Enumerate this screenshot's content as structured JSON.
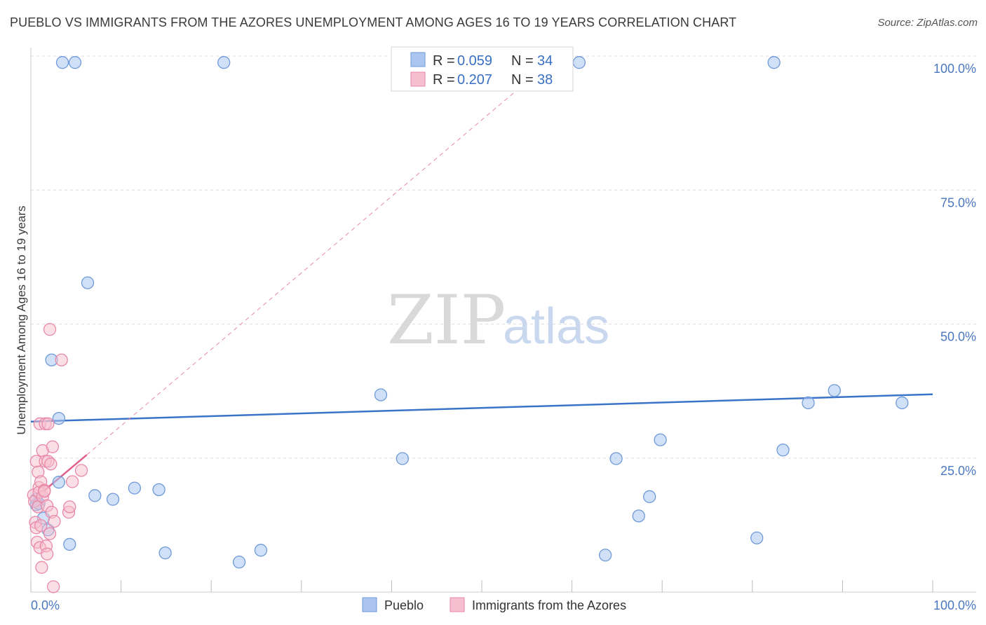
{
  "title": "PUEBLO VS IMMIGRANTS FROM THE AZORES UNEMPLOYMENT AMONG AGES 16 TO 19 YEARS CORRELATION CHART",
  "source": "Source: ZipAtlas.com",
  "watermark": {
    "zip": "ZIP",
    "atlas": "atlas"
  },
  "colors": {
    "pueblo_fill": "#aac6f0",
    "pueblo_stroke": "#6f9ad8",
    "pueblo_line": "#3a74c8",
    "azores_fill": "#f6bfd0",
    "azores_stroke": "#e889a8",
    "azores_line": "#e0618b",
    "axis_text": "#4a78c0",
    "grid": "#dddddd"
  },
  "legend": {
    "rows": [
      {
        "r_label": "R = ",
        "r_value": "0.059",
        "n_label": "N = ",
        "n_value": "34"
      },
      {
        "r_label": "R = ",
        "r_value": "0.207",
        "n_label": "N = ",
        "n_value": "38"
      }
    ]
  },
  "chart_data": {
    "type": "scatter",
    "title": "PUEBLO VS IMMIGRANTS FROM THE AZORES UNEMPLOYMENT AMONG AGES 16 TO 19 YEARS CORRELATION CHART",
    "xlabel": "",
    "ylabel": "Unemployment Among Ages 16 to 19 years",
    "xlim": [
      0,
      100
    ],
    "ylim": [
      0,
      100
    ],
    "x_tick_labels": [
      "0.0%",
      "100.0%"
    ],
    "y_ticks": [
      {
        "value": 25,
        "label": "25.0%"
      },
      {
        "value": 50,
        "label": "50.0%"
      },
      {
        "value": 75,
        "label": "75.0%"
      },
      {
        "value": 100,
        "label": "100.0%"
      }
    ],
    "legend_position": "bottom",
    "series": [
      {
        "name": "Pueblo",
        "R": 0.059,
        "N": 34,
        "trend": {
          "x0": 0,
          "y0": 31.8,
          "x1": 100,
          "y1": 36.9,
          "style": "solid"
        },
        "points": [
          [
            3.5,
            98.8
          ],
          [
            4.9,
            98.8
          ],
          [
            21.4,
            98.8
          ],
          [
            60.8,
            98.8
          ],
          [
            82.4,
            98.8
          ],
          [
            0.6,
            17.3
          ],
          [
            0.6,
            16.3
          ],
          [
            0.9,
            16.5
          ],
          [
            1.4,
            13.8
          ],
          [
            1.9,
            11.6
          ],
          [
            2.3,
            43.3
          ],
          [
            3.1,
            32.4
          ],
          [
            3.1,
            20.5
          ],
          [
            4.3,
            8.9
          ],
          [
            6.3,
            57.7
          ],
          [
            7.1,
            18.0
          ],
          [
            9.1,
            17.3
          ],
          [
            11.5,
            19.4
          ],
          [
            14.2,
            19.1
          ],
          [
            14.9,
            7.3
          ],
          [
            23.1,
            5.6
          ],
          [
            25.5,
            7.8
          ],
          [
            38.8,
            36.8
          ],
          [
            41.2,
            24.9
          ],
          [
            63.7,
            6.9
          ],
          [
            64.9,
            24.9
          ],
          [
            67.4,
            14.2
          ],
          [
            68.6,
            17.8
          ],
          [
            69.8,
            28.4
          ],
          [
            80.5,
            10.1
          ],
          [
            83.4,
            26.5
          ],
          [
            86.2,
            35.3
          ],
          [
            89.1,
            37.6
          ],
          [
            96.6,
            35.3
          ]
        ]
      },
      {
        "name": "Immigrants from the Azores",
        "R": 0.207,
        "N": 38,
        "trend": {
          "x0": 0.4,
          "y0": 17.4,
          "x1": 6.2,
          "y1": 25.6,
          "style": "solid",
          "extended": {
            "x0": 6.2,
            "y0": 25.6,
            "x1": 54.5,
            "y1": 94.5,
            "style": "dashed"
          }
        },
        "points": [
          [
            0.3,
            18.1
          ],
          [
            0.4,
            16.9
          ],
          [
            0.5,
            13.0
          ],
          [
            0.6,
            12.0
          ],
          [
            0.6,
            24.4
          ],
          [
            0.7,
            9.3
          ],
          [
            0.8,
            22.4
          ],
          [
            0.8,
            15.9
          ],
          [
            0.9,
            19.5
          ],
          [
            0.9,
            18.6
          ],
          [
            1.0,
            8.3
          ],
          [
            1.0,
            31.4
          ],
          [
            1.1,
            20.6
          ],
          [
            1.1,
            12.4
          ],
          [
            1.2,
            4.6
          ],
          [
            1.3,
            17.8
          ],
          [
            1.3,
            26.4
          ],
          [
            1.5,
            19.0
          ],
          [
            1.5,
            18.8
          ],
          [
            1.6,
            31.4
          ],
          [
            1.6,
            24.4
          ],
          [
            1.7,
            8.6
          ],
          [
            1.8,
            7.1
          ],
          [
            1.8,
            16.1
          ],
          [
            1.9,
            24.4
          ],
          [
            1.9,
            31.4
          ],
          [
            2.1,
            10.9
          ],
          [
            2.1,
            49.0
          ],
          [
            2.2,
            23.9
          ],
          [
            2.3,
            14.9
          ],
          [
            2.4,
            27.1
          ],
          [
            2.5,
            1.0
          ],
          [
            2.6,
            13.2
          ],
          [
            3.4,
            43.3
          ],
          [
            4.2,
            14.9
          ],
          [
            4.3,
            15.9
          ],
          [
            4.6,
            20.6
          ],
          [
            5.6,
            22.7
          ]
        ]
      }
    ]
  },
  "bottom_legend": [
    "Pueblo",
    "Immigrants from the Azores"
  ]
}
